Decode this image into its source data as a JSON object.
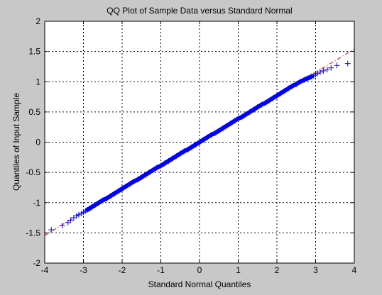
{
  "chart_data": {
    "type": "scatter",
    "title": "QQ Plot of Sample Data versus Standard Normal",
    "xlabel": "Standard Normal Quantiles",
    "ylabel": "Quantiles of Input Sample",
    "xlim": [
      -4,
      4
    ],
    "ylim": [
      -2,
      2
    ],
    "xticks": [
      -4,
      -3,
      -2,
      -1,
      0,
      1,
      2,
      3,
      4
    ],
    "yticks": [
      -2,
      -1.5,
      -1,
      -0.5,
      0,
      0.5,
      1,
      1.5,
      2
    ],
    "xtick_labels": [
      "-4",
      "-3",
      "-2",
      "-1",
      "0",
      "1",
      "2",
      "3",
      "4"
    ],
    "ytick_labels": [
      "-2",
      "-1.5",
      "-1",
      "-0.5",
      "0",
      "0.5",
      "1",
      "1.5",
      "2"
    ],
    "grid": true,
    "marker": "+",
    "marker_color": "#0000ff",
    "reference_line": {
      "slope": 0.385,
      "intercept": 0.0,
      "style": "dash-dot",
      "color": "#ff0000"
    },
    "series": [
      {
        "values_x": [
          -3.83,
          -3.55,
          -3.4,
          -3.33,
          -3.25,
          -3.18,
          -3.12,
          -3.05,
          -3.0,
          -2.95,
          -2.9,
          -2.85,
          -2.8,
          -2.7,
          -2.6,
          -2.5,
          -2.4,
          -2.3,
          -2.2,
          -2.1,
          -2.0,
          -1.9,
          -1.8,
          -1.7,
          -1.6,
          -1.5,
          -1.4,
          -1.3,
          -1.2,
          -1.1,
          -1.0,
          -0.9,
          -0.8,
          -0.7,
          -0.6,
          -0.5,
          -0.4,
          -0.3,
          -0.2,
          -0.1,
          0.0,
          0.1,
          0.2,
          0.3,
          0.4,
          0.5,
          0.6,
          0.7,
          0.8,
          0.9,
          1.0,
          1.1,
          1.2,
          1.3,
          1.4,
          1.5,
          1.6,
          1.7,
          1.8,
          1.9,
          2.0,
          2.1,
          2.2,
          2.3,
          2.4,
          2.5,
          2.6,
          2.7,
          2.8,
          2.85,
          2.9,
          2.95,
          3.0,
          3.05,
          3.12,
          3.2,
          3.3,
          3.4,
          3.55,
          3.83
        ],
        "values_y": [
          -1.45,
          -1.38,
          -1.33,
          -1.29,
          -1.25,
          -1.22,
          -1.2,
          -1.18,
          -1.16,
          -1.14,
          -1.12,
          -1.1,
          -1.08,
          -1.04,
          -1.0,
          -0.96,
          -0.93,
          -0.89,
          -0.85,
          -0.81,
          -0.77,
          -0.73,
          -0.69,
          -0.65,
          -0.62,
          -0.58,
          -0.54,
          -0.5,
          -0.46,
          -0.42,
          -0.39,
          -0.35,
          -0.31,
          -0.27,
          -0.23,
          -0.19,
          -0.15,
          -0.12,
          -0.08,
          -0.04,
          0.0,
          0.04,
          0.08,
          0.12,
          0.15,
          0.19,
          0.23,
          0.27,
          0.31,
          0.35,
          0.39,
          0.42,
          0.46,
          0.5,
          0.54,
          0.58,
          0.62,
          0.65,
          0.69,
          0.73,
          0.77,
          0.81,
          0.85,
          0.89,
          0.93,
          0.96,
          1.0,
          1.03,
          1.06,
          1.07,
          1.09,
          1.1,
          1.12,
          1.14,
          1.16,
          1.18,
          1.2,
          1.23,
          1.27,
          1.3
        ]
      }
    ]
  }
}
